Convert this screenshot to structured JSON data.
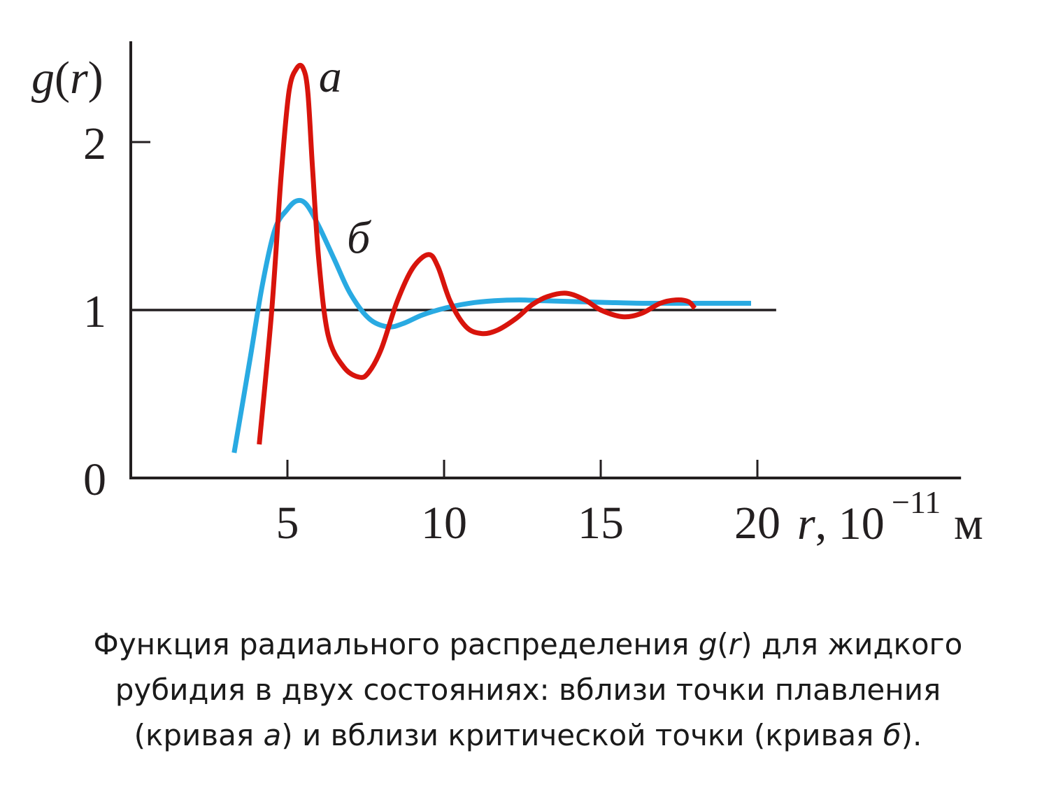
{
  "chart_data": {
    "type": "line",
    "ylabel": {
      "func": "g",
      "arg": "r"
    },
    "xlabel": {
      "var": "r",
      "unit_base": "10",
      "exponent": "−11",
      "unit": "м"
    },
    "xlim": [
      0,
      26.5
    ],
    "ylim": [
      0,
      2.6
    ],
    "x_ticks": [
      5,
      10,
      15,
      20
    ],
    "x_tick_labels": [
      "5",
      "10",
      "15",
      "20"
    ],
    "y_ticks": [
      2
    ],
    "y_tick_labels": [
      {
        "label": "0",
        "value": 0
      },
      {
        "label": "1",
        "value": 1
      },
      {
        "label": "2",
        "value": 2
      }
    ],
    "reference_line": {
      "y": 1,
      "x_range": [
        0,
        20.6
      ]
    },
    "series": [
      {
        "name": "а",
        "color": "#d8140c",
        "x": [
          4.1,
          4.5,
          4.8,
          5.05,
          5.3,
          5.5,
          5.65,
          5.8,
          6.0,
          6.3,
          6.8,
          7.3,
          7.6,
          8.0,
          8.5,
          9.0,
          9.5,
          9.8,
          10.2,
          10.7,
          11.2,
          11.7,
          12.3,
          12.8,
          13.3,
          13.9,
          14.5,
          15.0,
          15.7,
          16.3,
          16.9,
          17.4,
          17.8,
          18.0
        ],
        "y": [
          0.2,
          1.0,
          1.8,
          2.3,
          2.44,
          2.44,
          2.3,
          1.85,
          1.3,
          0.85,
          0.66,
          0.6,
          0.63,
          0.77,
          1.05,
          1.25,
          1.33,
          1.26,
          1.05,
          0.9,
          0.86,
          0.88,
          0.95,
          1.03,
          1.08,
          1.1,
          1.06,
          1.0,
          0.96,
          0.98,
          1.04,
          1.06,
          1.05,
          1.01
        ]
      },
      {
        "name": "б",
        "color": "#29aae2",
        "x": [
          3.3,
          3.8,
          4.2,
          4.6,
          5.0,
          5.3,
          5.6,
          6.0,
          6.5,
          7.0,
          7.6,
          8.2,
          8.7,
          9.3,
          10.0,
          10.8,
          11.6,
          12.4,
          13.2,
          14.2,
          15.2,
          16.5,
          18.0,
          19.8
        ],
        "y": [
          0.15,
          0.7,
          1.15,
          1.48,
          1.6,
          1.65,
          1.63,
          1.5,
          1.3,
          1.1,
          0.95,
          0.9,
          0.92,
          0.97,
          1.01,
          1.04,
          1.055,
          1.06,
          1.055,
          1.05,
          1.045,
          1.04,
          1.04,
          1.04
        ]
      }
    ],
    "curve_labels": [
      {
        "text": "а",
        "series": "а",
        "x": 6.0,
        "y": 2.3
      },
      {
        "text": "б",
        "series": "б",
        "x": 6.9,
        "y": 1.34
      }
    ]
  },
  "caption": {
    "line1_pre": "Функция радиального распределения ",
    "g": "g",
    "lparen": "(",
    "r": "r",
    "rparen": ")",
    "line1_post": " для жидкого",
    "line2": "рубидия в двух состояниях: вблизи точки плавления",
    "line3_pre": "(кривая ",
    "a": "а",
    "line3_mid": ") и вблизи критической точки (кривая ",
    "b": "б",
    "line3_post": ")."
  }
}
